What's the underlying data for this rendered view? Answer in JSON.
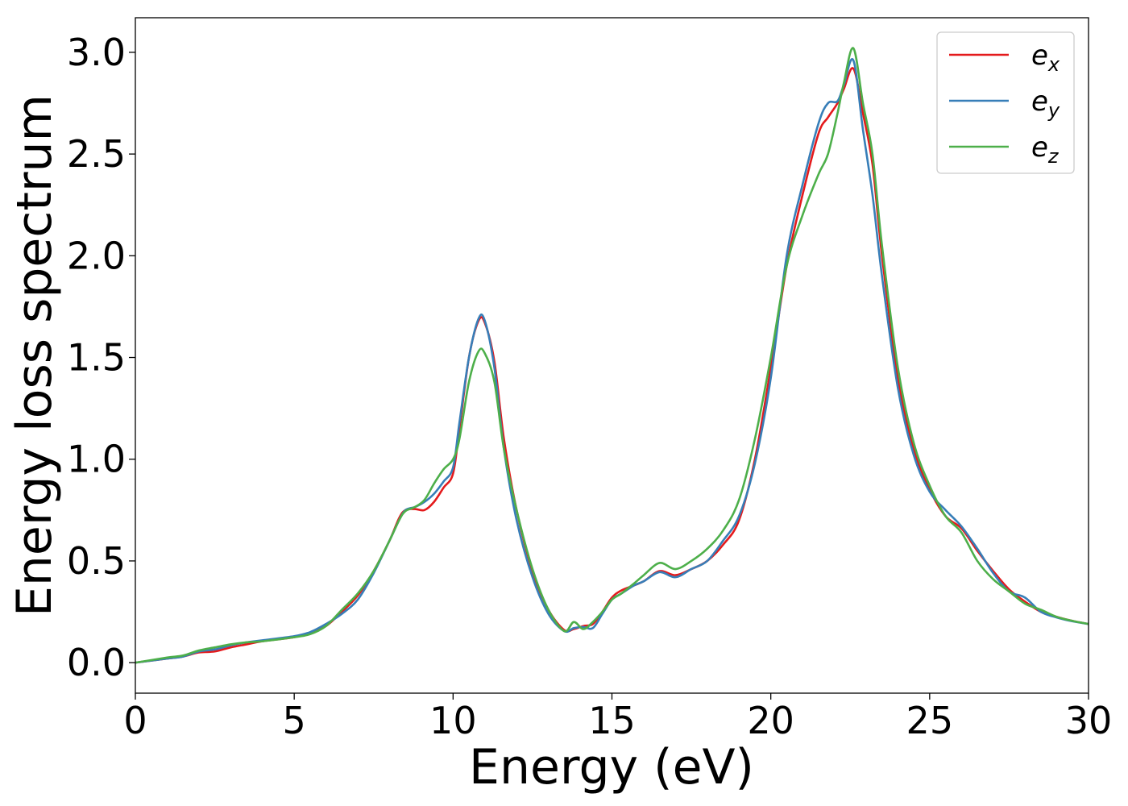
{
  "chart_data": {
    "type": "line",
    "title": "",
    "xlabel": "Energy (eV)",
    "ylabel": "Energy loss spectrum",
    "xlim": [
      0,
      30
    ],
    "ylim": [
      -0.15,
      3.17
    ],
    "xticks": [
      0,
      5,
      10,
      15,
      20,
      25,
      30
    ],
    "yticks": [
      0.0,
      0.5,
      1.0,
      1.5,
      2.0,
      2.5,
      3.0
    ],
    "xtick_labels": [
      "0",
      "5",
      "10",
      "15",
      "20",
      "25",
      "30"
    ],
    "ytick_labels": [
      "0.0",
      "0.5",
      "1.0",
      "1.5",
      "2.0",
      "2.5",
      "3.0"
    ],
    "grid": false,
    "legend_position": "top-right",
    "series": [
      {
        "name": "e",
        "subscript": "x",
        "color": "#e41a1c",
        "points": [
          [
            0,
            0
          ],
          [
            1,
            0.02
          ],
          [
            1.5,
            0.03
          ],
          [
            2,
            0.05
          ],
          [
            2.5,
            0.055
          ],
          [
            3,
            0.075
          ],
          [
            3.5,
            0.09
          ],
          [
            4,
            0.105
          ],
          [
            5,
            0.125
          ],
          [
            5.5,
            0.145
          ],
          [
            6,
            0.18
          ],
          [
            6.5,
            0.25
          ],
          [
            7,
            0.33
          ],
          [
            7.5,
            0.45
          ],
          [
            8,
            0.6
          ],
          [
            8.3,
            0.71
          ],
          [
            8.5,
            0.75
          ],
          [
            8.8,
            0.755
          ],
          [
            9.1,
            0.75
          ],
          [
            9.4,
            0.79
          ],
          [
            9.7,
            0.86
          ],
          [
            10,
            0.93
          ],
          [
            10.2,
            1.15
          ],
          [
            10.5,
            1.5
          ],
          [
            10.8,
            1.68
          ],
          [
            11,
            1.67
          ],
          [
            11.3,
            1.48
          ],
          [
            11.6,
            1.1
          ],
          [
            12,
            0.75
          ],
          [
            12.5,
            0.45
          ],
          [
            13,
            0.26
          ],
          [
            13.5,
            0.16
          ],
          [
            13.8,
            0.165
          ],
          [
            14.1,
            0.18
          ],
          [
            14.4,
            0.19
          ],
          [
            14.7,
            0.25
          ],
          [
            15,
            0.32
          ],
          [
            15.3,
            0.355
          ],
          [
            15.7,
            0.38
          ],
          [
            16,
            0.4
          ],
          [
            16.5,
            0.45
          ],
          [
            17,
            0.43
          ],
          [
            17.5,
            0.46
          ],
          [
            18,
            0.5
          ],
          [
            18.5,
            0.58
          ],
          [
            19,
            0.7
          ],
          [
            19.5,
            1.0
          ],
          [
            20,
            1.45
          ],
          [
            20.5,
            1.95
          ],
          [
            21,
            2.3
          ],
          [
            21.5,
            2.6
          ],
          [
            21.8,
            2.68
          ],
          [
            22.1,
            2.75
          ],
          [
            22.3,
            2.82
          ],
          [
            22.6,
            2.92
          ],
          [
            22.9,
            2.7
          ],
          [
            23.2,
            2.45
          ],
          [
            23.5,
            2.0
          ],
          [
            24,
            1.4
          ],
          [
            24.5,
            1.05
          ],
          [
            25,
            0.85
          ],
          [
            25.5,
            0.72
          ],
          [
            26,
            0.66
          ],
          [
            26.5,
            0.55
          ],
          [
            27,
            0.45
          ],
          [
            27.5,
            0.36
          ],
          [
            28,
            0.3
          ],
          [
            28.5,
            0.25
          ],
          [
            29,
            0.225
          ],
          [
            29.5,
            0.205
          ],
          [
            30,
            0.19
          ]
        ]
      },
      {
        "name": "e",
        "subscript": "y",
        "color": "#377eb8",
        "points": [
          [
            0,
            0
          ],
          [
            1,
            0.02
          ],
          [
            1.5,
            0.03
          ],
          [
            2,
            0.055
          ],
          [
            2.5,
            0.065
          ],
          [
            3,
            0.085
          ],
          [
            3.5,
            0.1
          ],
          [
            4,
            0.11
          ],
          [
            5,
            0.13
          ],
          [
            5.5,
            0.15
          ],
          [
            6,
            0.19
          ],
          [
            6.5,
            0.24
          ],
          [
            7,
            0.31
          ],
          [
            7.5,
            0.44
          ],
          [
            8,
            0.6
          ],
          [
            8.3,
            0.7
          ],
          [
            8.5,
            0.75
          ],
          [
            8.8,
            0.765
          ],
          [
            9.1,
            0.79
          ],
          [
            9.4,
            0.83
          ],
          [
            9.7,
            0.89
          ],
          [
            10,
            0.96
          ],
          [
            10.2,
            1.18
          ],
          [
            10.5,
            1.5
          ],
          [
            10.8,
            1.69
          ],
          [
            11,
            1.68
          ],
          [
            11.3,
            1.45
          ],
          [
            11.6,
            1.05
          ],
          [
            12,
            0.7
          ],
          [
            12.5,
            0.42
          ],
          [
            13,
            0.24
          ],
          [
            13.5,
            0.155
          ],
          [
            13.8,
            0.17
          ],
          [
            14.1,
            0.175
          ],
          [
            14.4,
            0.17
          ],
          [
            14.7,
            0.24
          ],
          [
            15,
            0.31
          ],
          [
            15.3,
            0.34
          ],
          [
            15.7,
            0.38
          ],
          [
            16,
            0.4
          ],
          [
            16.5,
            0.445
          ],
          [
            17,
            0.42
          ],
          [
            17.5,
            0.46
          ],
          [
            18,
            0.5
          ],
          [
            18.5,
            0.6
          ],
          [
            19,
            0.72
          ],
          [
            19.5,
            0.98
          ],
          [
            20,
            1.4
          ],
          [
            20.5,
            2.0
          ],
          [
            21,
            2.35
          ],
          [
            21.5,
            2.65
          ],
          [
            21.8,
            2.75
          ],
          [
            22.1,
            2.76
          ],
          [
            22.3,
            2.84
          ],
          [
            22.6,
            2.96
          ],
          [
            22.9,
            2.62
          ],
          [
            23.2,
            2.3
          ],
          [
            23.5,
            1.9
          ],
          [
            24,
            1.35
          ],
          [
            24.5,
            1.02
          ],
          [
            25,
            0.84
          ],
          [
            25.5,
            0.75
          ],
          [
            26,
            0.67
          ],
          [
            26.5,
            0.56
          ],
          [
            27,
            0.44
          ],
          [
            27.5,
            0.35
          ],
          [
            28,
            0.32
          ],
          [
            28.5,
            0.25
          ],
          [
            29,
            0.222
          ],
          [
            29.5,
            0.203
          ],
          [
            30,
            0.19
          ]
        ]
      },
      {
        "name": "e",
        "subscript": "z",
        "color": "#4daf4a",
        "points": [
          [
            0,
            0
          ],
          [
            1,
            0.025
          ],
          [
            1.5,
            0.035
          ],
          [
            2,
            0.06
          ],
          [
            2.5,
            0.075
          ],
          [
            3,
            0.09
          ],
          [
            3.5,
            0.1
          ],
          [
            4,
            0.105
          ],
          [
            5,
            0.125
          ],
          [
            5.5,
            0.14
          ],
          [
            6,
            0.18
          ],
          [
            6.5,
            0.26
          ],
          [
            7,
            0.34
          ],
          [
            7.5,
            0.45
          ],
          [
            8,
            0.6
          ],
          [
            8.3,
            0.7
          ],
          [
            8.5,
            0.745
          ],
          [
            8.8,
            0.765
          ],
          [
            9.1,
            0.8
          ],
          [
            9.4,
            0.88
          ],
          [
            9.7,
            0.95
          ],
          [
            10,
            1.0
          ],
          [
            10.2,
            1.1
          ],
          [
            10.5,
            1.38
          ],
          [
            10.8,
            1.53
          ],
          [
            11,
            1.52
          ],
          [
            11.3,
            1.38
          ],
          [
            11.6,
            1.05
          ],
          [
            12,
            0.75
          ],
          [
            12.5,
            0.46
          ],
          [
            13,
            0.26
          ],
          [
            13.5,
            0.155
          ],
          [
            13.8,
            0.2
          ],
          [
            14.1,
            0.165
          ],
          [
            14.4,
            0.2
          ],
          [
            14.7,
            0.25
          ],
          [
            15,
            0.31
          ],
          [
            15.3,
            0.34
          ],
          [
            15.7,
            0.39
          ],
          [
            16,
            0.43
          ],
          [
            16.5,
            0.49
          ],
          [
            17,
            0.46
          ],
          [
            17.5,
            0.5
          ],
          [
            18,
            0.56
          ],
          [
            18.5,
            0.65
          ],
          [
            19,
            0.8
          ],
          [
            19.5,
            1.1
          ],
          [
            20,
            1.5
          ],
          [
            20.5,
            1.95
          ],
          [
            21,
            2.2
          ],
          [
            21.5,
            2.4
          ],
          [
            21.8,
            2.5
          ],
          [
            22.1,
            2.7
          ],
          [
            22.3,
            2.85
          ],
          [
            22.6,
            3.02
          ],
          [
            22.9,
            2.75
          ],
          [
            23.2,
            2.5
          ],
          [
            23.5,
            2.05
          ],
          [
            24,
            1.45
          ],
          [
            24.5,
            1.08
          ],
          [
            25,
            0.87
          ],
          [
            25.5,
            0.72
          ],
          [
            26,
            0.64
          ],
          [
            26.5,
            0.5
          ],
          [
            27,
            0.41
          ],
          [
            27.5,
            0.35
          ],
          [
            28,
            0.29
          ],
          [
            28.5,
            0.26
          ],
          [
            29,
            0.225
          ],
          [
            29.5,
            0.205
          ],
          [
            30,
            0.19
          ]
        ]
      }
    ]
  }
}
